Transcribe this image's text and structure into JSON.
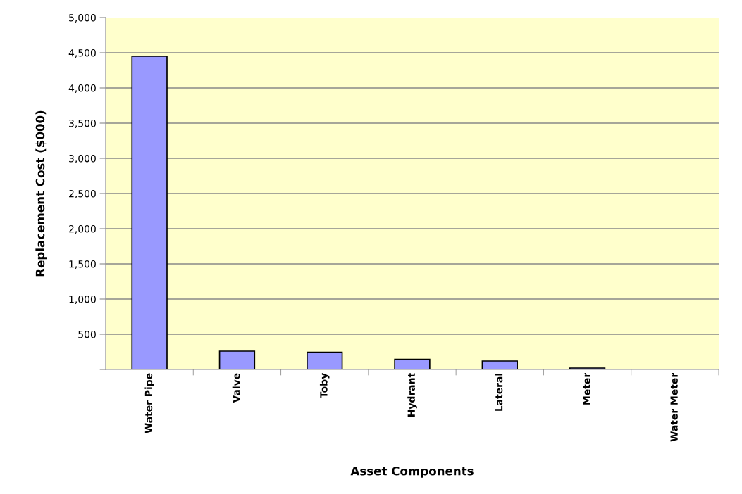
{
  "chart_data": {
    "type": "bar",
    "xlabel": "Asset Components",
    "ylabel": "Replacement Cost ($000)",
    "categories": [
      "Water Pipe",
      "Valve",
      "Toby",
      "Hydrant",
      "Lateral",
      "Meter",
      "Water Meter"
    ],
    "values": [
      4450,
      260,
      245,
      145,
      120,
      20,
      0
    ],
    "color": "#9999ff",
    "ylim": [
      0,
      5000
    ],
    "yticks": [
      {
        "value": 0,
        "label": null
      },
      {
        "value": 500,
        "label": "500"
      },
      {
        "value": 1000,
        "label": "1,000"
      },
      {
        "value": 1500,
        "label": "1,500"
      },
      {
        "value": 2000,
        "label": "2,000"
      },
      {
        "value": 2500,
        "label": "2,500"
      },
      {
        "value": 3000,
        "label": "3,000"
      },
      {
        "value": 3500,
        "label": "3,500"
      },
      {
        "value": 4000,
        "label": "4,000"
      },
      {
        "value": 4500,
        "label": "4,500"
      },
      {
        "value": 5000,
        "label": "5,000"
      }
    ],
    "grid": "y",
    "legend": false
  }
}
